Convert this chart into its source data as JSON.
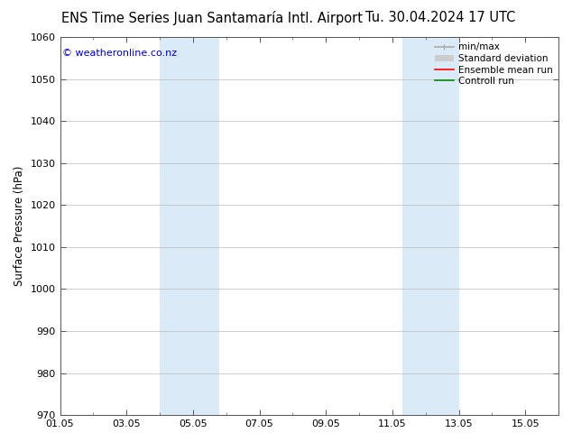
{
  "title_left": "ENS Time Series Juan Santamaría Intl. Airport",
  "title_right": "Tu. 30.04.2024 17 UTC",
  "ylabel": "Surface Pressure (hPa)",
  "ylim": [
    970,
    1060
  ],
  "yticks": [
    970,
    980,
    990,
    1000,
    1010,
    1020,
    1030,
    1040,
    1050,
    1060
  ],
  "xlim_start": 0,
  "xlim_end": 15,
  "xtick_labels": [
    "01.05",
    "03.05",
    "05.05",
    "07.05",
    "09.05",
    "11.05",
    "13.05",
    "15.05"
  ],
  "xtick_positions": [
    0,
    2,
    4,
    6,
    8,
    10,
    12,
    14
  ],
  "shaded_bands": [
    {
      "x_start": 3.0,
      "x_end": 4.8
    },
    {
      "x_start": 10.3,
      "x_end": 12.0
    }
  ],
  "band_color": "#daeaf7",
  "watermark_text": "© weatheronline.co.nz",
  "watermark_color": "#0000cc",
  "legend_entries": [
    {
      "label": "min/max",
      "color": "#aaaaaa",
      "lw": 1.2
    },
    {
      "label": "Standard deviation",
      "color": "#cccccc",
      "lw": 5
    },
    {
      "label": "Ensemble mean run",
      "color": "#ff0000",
      "lw": 1.2
    },
    {
      "label": "Controll run",
      "color": "#008800",
      "lw": 1.2
    }
  ],
  "bg_color": "#ffffff",
  "grid_color": "#bbbbbb",
  "title_fontsize": 10.5,
  "ylabel_fontsize": 8.5,
  "tick_fontsize": 8,
  "watermark_fontsize": 8,
  "legend_fontsize": 7.5
}
